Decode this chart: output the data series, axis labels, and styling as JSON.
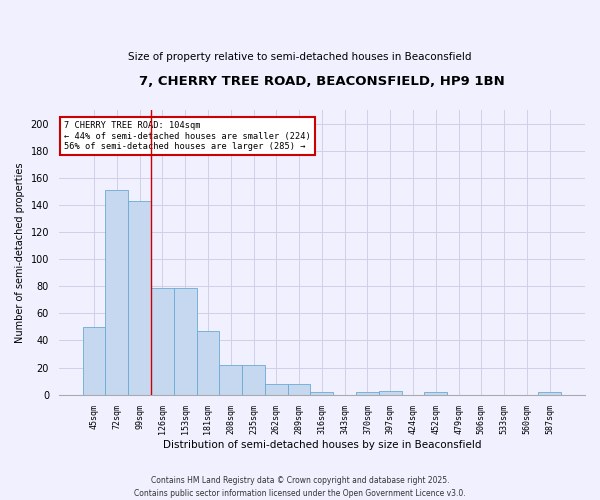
{
  "title1": "7, CHERRY TREE ROAD, BEACONSFIELD, HP9 1BN",
  "title2": "Size of property relative to semi-detached houses in Beaconsfield",
  "xlabel": "Distribution of semi-detached houses by size in Beaconsfield",
  "ylabel": "Number of semi-detached properties",
  "categories": [
    "45sqm",
    "72sqm",
    "99sqm",
    "126sqm",
    "153sqm",
    "181sqm",
    "208sqm",
    "235sqm",
    "262sqm",
    "289sqm",
    "316sqm",
    "343sqm",
    "370sqm",
    "397sqm",
    "424sqm",
    "452sqm",
    "479sqm",
    "506sqm",
    "533sqm",
    "560sqm",
    "587sqm"
  ],
  "values": [
    50,
    151,
    143,
    79,
    79,
    47,
    22,
    22,
    8,
    8,
    2,
    0,
    2,
    3,
    0,
    2,
    0,
    0,
    0,
    0,
    2
  ],
  "bar_color": "#c5d8f0",
  "bar_edge_color": "#6aaad4",
  "property_line_x": 2.5,
  "annotation_text": "7 CHERRY TREE ROAD: 104sqm\n← 44% of semi-detached houses are smaller (224)\n56% of semi-detached houses are larger (285) →",
  "annotation_box_color": "#ffffff",
  "annotation_box_edge": "#cc0000",
  "vline_color": "#cc0000",
  "ylim": [
    0,
    210
  ],
  "yticks": [
    0,
    20,
    40,
    60,
    80,
    100,
    120,
    140,
    160,
    180,
    200
  ],
  "grid_color": "#d0d0e8",
  "footer": "Contains HM Land Registry data © Crown copyright and database right 2025.\nContains public sector information licensed under the Open Government Licence v3.0.",
  "bg_color": "#f0f0ff"
}
